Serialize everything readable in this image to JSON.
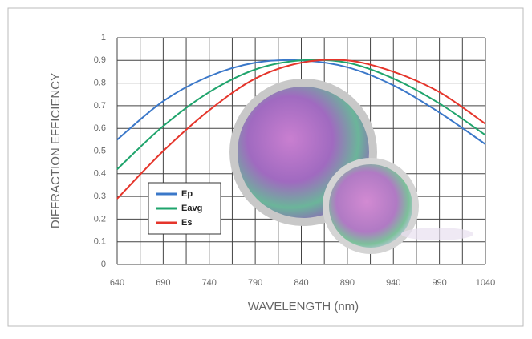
{
  "chart_data": {
    "type": "line",
    "x_label": "WAVELENGTH (nm)",
    "y_label": "DIFFRACTION EFFICIENCY",
    "x": [
      640,
      690,
      740,
      790,
      840,
      890,
      940,
      990,
      1040
    ],
    "series": [
      {
        "name": "Ep",
        "color": "#3b78c9",
        "values": [
          0.55,
          0.72,
          0.83,
          0.89,
          0.9,
          0.87,
          0.79,
          0.67,
          0.53
        ]
      },
      {
        "name": "Eavg",
        "color": "#1fa46c",
        "values": [
          0.42,
          0.61,
          0.76,
          0.86,
          0.9,
          0.89,
          0.82,
          0.71,
          0.57
        ]
      },
      {
        "name": "Es",
        "color": "#e5352b",
        "values": [
          0.29,
          0.5,
          0.68,
          0.82,
          0.89,
          0.9,
          0.85,
          0.76,
          0.62
        ]
      }
    ],
    "xlim": [
      640,
      1040
    ],
    "xticks": [
      640,
      690,
      740,
      790,
      840,
      890,
      940,
      990,
      1040
    ],
    "ylim": [
      0,
      1
    ],
    "yticks": [
      0,
      0.1,
      0.2,
      0.3,
      0.4,
      0.5,
      0.6,
      0.7,
      0.8,
      0.9,
      1
    ],
    "grid": true
  }
}
